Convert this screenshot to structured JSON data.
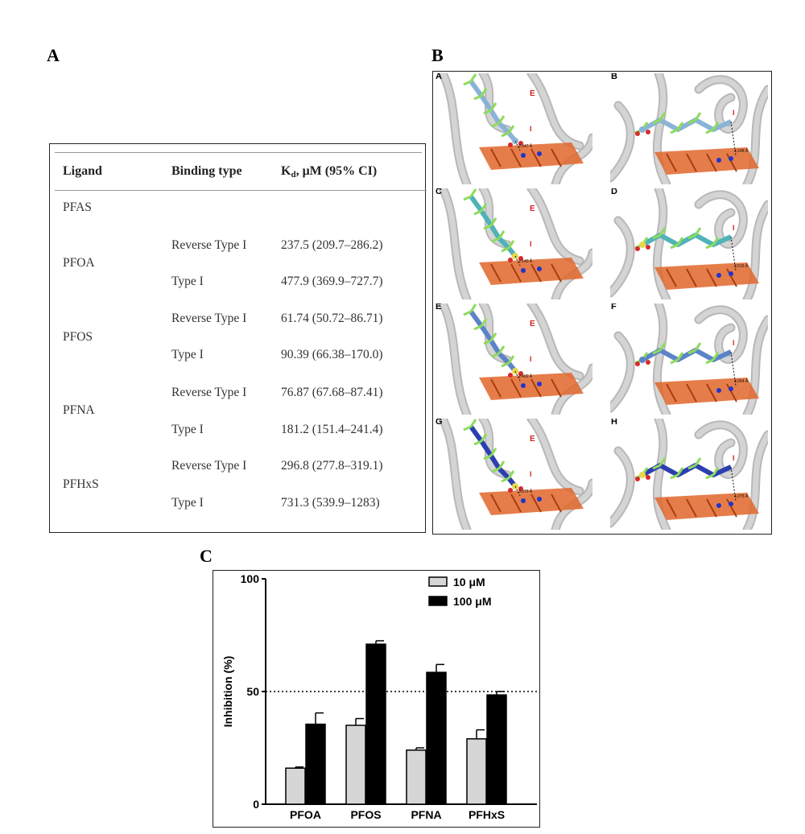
{
  "panels": {
    "a": "A",
    "b": "B",
    "c": "C"
  },
  "table": {
    "headers": {
      "ligand": "Ligand",
      "binding_type": "Binding type",
      "kd_main": "K",
      "kd_sub": "d",
      "kd_rest": ", μM (95% CI)"
    },
    "group_label": "PFAS",
    "rows": [
      {
        "ligand": "PFOA",
        "entries": [
          {
            "type": "Reverse Type I",
            "value": "237.5 (209.7–286.2)"
          },
          {
            "type": "Type I",
            "value": "477.9 (369.9–727.7)"
          }
        ]
      },
      {
        "ligand": "PFOS",
        "entries": [
          {
            "type": "Reverse Type I",
            "value": "61.74 (50.72–86.71)"
          },
          {
            "type": "Type I",
            "value": "90.39 (66.38–170.0)"
          }
        ]
      },
      {
        "ligand": "PFNA",
        "entries": [
          {
            "type": "Reverse Type I",
            "value": "76.87 (67.68–87.41)"
          },
          {
            "type": "Type I",
            "value": "181.2 (151.4–241.4)"
          }
        ]
      },
      {
        "ligand": "PFHxS",
        "entries": [
          {
            "type": "Reverse Type I",
            "value": "296.8 (277.8–319.1)"
          },
          {
            "type": "Type I",
            "value": "731.3 (539.9–1283)"
          }
        ]
      }
    ]
  },
  "docking": {
    "cells": [
      {
        "label": "A",
        "dist": "2.347 Å",
        "helix_e": "E",
        "helix_i": "I",
        "ligand_color": "#8ab4d6"
      },
      {
        "label": "B",
        "dist": "4.248 Å",
        "helix_e": "",
        "helix_i": "I",
        "ligand_color": "#8ab4d6"
      },
      {
        "label": "C",
        "dist": "2.140 Å",
        "helix_e": "E",
        "helix_i": "I",
        "ligand_color": "#4fb3b8"
      },
      {
        "label": "D",
        "dist": "3.616 Å",
        "helix_e": "",
        "helix_i": "I",
        "ligand_color": "#4fb3b8"
      },
      {
        "label": "E",
        "dist": "2.400 Å",
        "helix_e": "E",
        "helix_i": "I",
        "ligand_color": "#5b84c8"
      },
      {
        "label": "F",
        "dist": "4.054 Å",
        "helix_e": "",
        "helix_i": "I",
        "ligand_color": "#5b84c8"
      },
      {
        "label": "G",
        "dist": "3.879 Å",
        "helix_e": "E",
        "helix_i": "I",
        "ligand_color": "#2c3fb0"
      },
      {
        "label": "H",
        "dist": "4.275 Å",
        "helix_e": "",
        "helix_i": "I",
        "ligand_color": "#2c3fb0"
      }
    ],
    "colors": {
      "heme": "#e0662a",
      "protein": "#d4d4d4",
      "fluorine": "#8ddc5a",
      "sulfur": "#e8d84a",
      "oxygen": "#d82a2a",
      "nitrogen": "#2233cc"
    }
  },
  "chart_data": {
    "type": "bar",
    "title": "",
    "xlabel": "",
    "ylabel": "Inhibition (%)",
    "ylim": [
      0,
      100
    ],
    "yticks": [
      0,
      50,
      100
    ],
    "categories": [
      "PFOA",
      "PFOS",
      "PFNA",
      "PFHxS"
    ],
    "series": [
      {
        "name": "10 μM",
        "color": "#d6d6d6",
        "values": [
          16,
          35,
          24,
          29
        ],
        "errors": [
          0.5,
          3,
          1,
          4
        ]
      },
      {
        "name": "100 μM",
        "color": "#000000",
        "values": [
          35.5,
          71,
          58.5,
          48.5
        ],
        "errors": [
          5,
          1.5,
          3.5,
          1.5
        ]
      }
    ],
    "reference_line": 50,
    "legend_position": "top-right"
  }
}
